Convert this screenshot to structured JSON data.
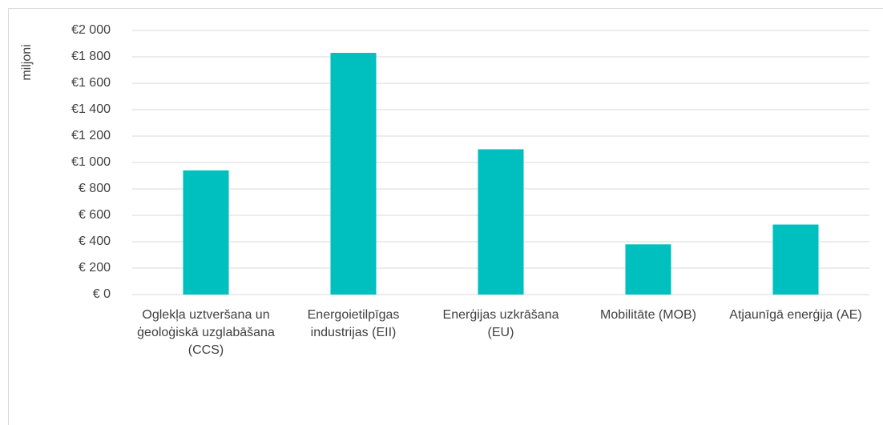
{
  "chart_data": {
    "type": "bar",
    "y_label": "miljoni",
    "categories": [
      "Oglekļa uztveršana un ģeoloģiskā uzglabāšana (CCS)",
      "Energoietilpīgas industrijas (EII)",
      "Enerģijas uzkrāšana (EU)",
      "Mobilitāte (MOB)",
      "Atjaunīgā enerģija (AE)"
    ],
    "values": [
      940,
      1830,
      1100,
      380,
      530
    ],
    "color": "#00bfbf",
    "ylim": [
      0,
      2000
    ],
    "yticks": [
      {
        "value": 0,
        "label": "€ 0"
      },
      {
        "value": 200,
        "label": "€ 200"
      },
      {
        "value": 400,
        "label": "€ 400"
      },
      {
        "value": 600,
        "label": "€ 600"
      },
      {
        "value": 800,
        "label": "€ 800"
      },
      {
        "value": 1000,
        "label": "€1 000"
      },
      {
        "value": 1200,
        "label": "€1 200"
      },
      {
        "value": 1400,
        "label": "€1 400"
      },
      {
        "value": 1600,
        "label": "€1 600"
      },
      {
        "value": 1800,
        "label": "€1 800"
      },
      {
        "value": 2000,
        "label": "€2 000"
      }
    ],
    "grid": true
  }
}
